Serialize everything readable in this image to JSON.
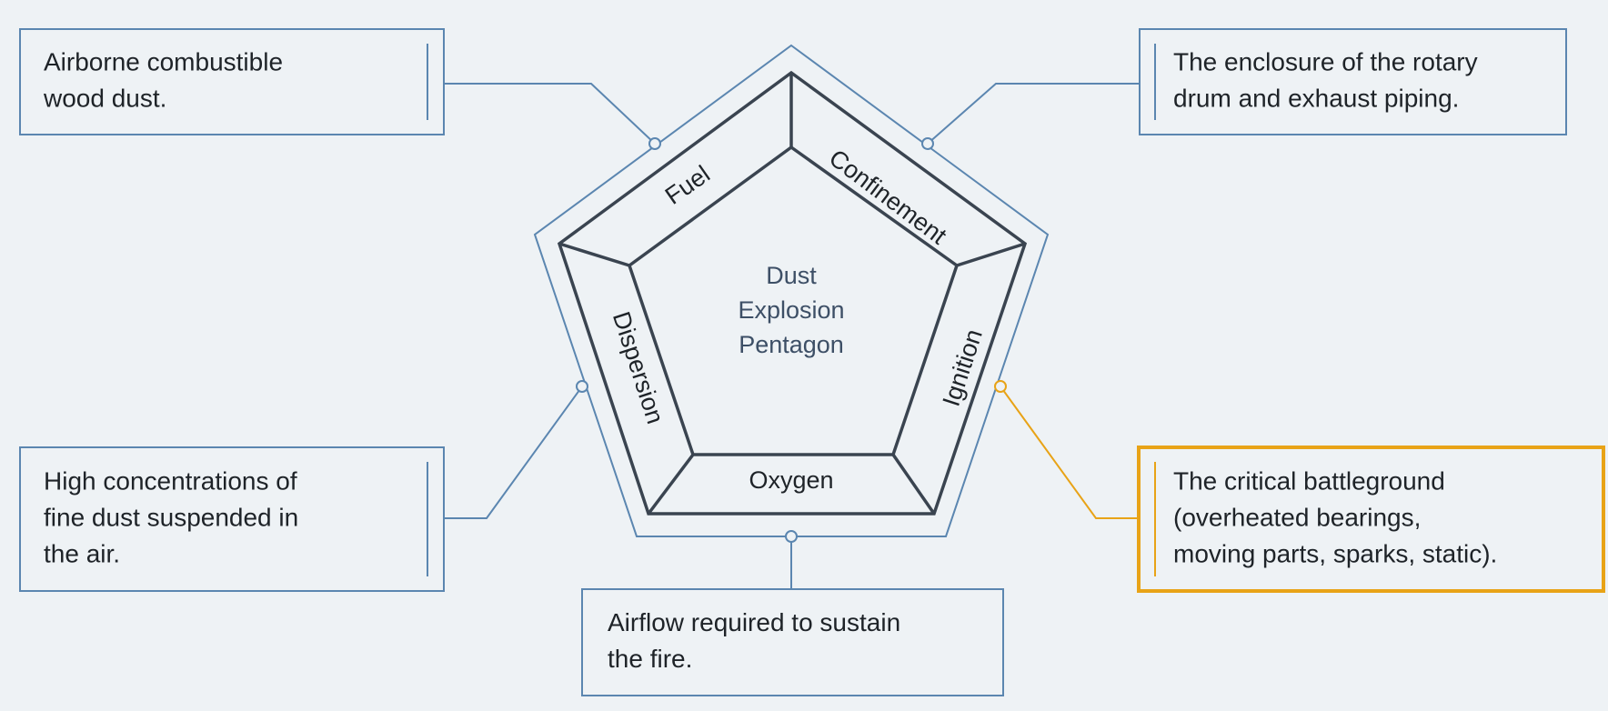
{
  "center": {
    "lines": [
      "Dust",
      "Explosion",
      "Pentagon"
    ]
  },
  "segments": [
    "Fuel",
    "Confinement",
    "Ignition",
    "Oxygen",
    "Dispersion"
  ],
  "callouts": [
    {
      "segment": "Fuel",
      "lines": [
        "Airborne combustible",
        "wood dust."
      ]
    },
    {
      "segment": "Confinement",
      "lines": [
        "The enclosure of the rotary",
        "drum and exhaust piping."
      ]
    },
    {
      "segment": "Ignition",
      "lines": [
        "The critical battleground",
        "(overheated bearings,",
        "moving parts, sparks, static)."
      ],
      "highlight": true
    },
    {
      "segment": "Oxygen",
      "lines": [
        "Airflow required to sustain",
        "the fire."
      ]
    },
    {
      "segment": "Dispersion",
      "lines": [
        "High concentrations of",
        "fine dust suspended in",
        "the air."
      ]
    }
  ]
}
